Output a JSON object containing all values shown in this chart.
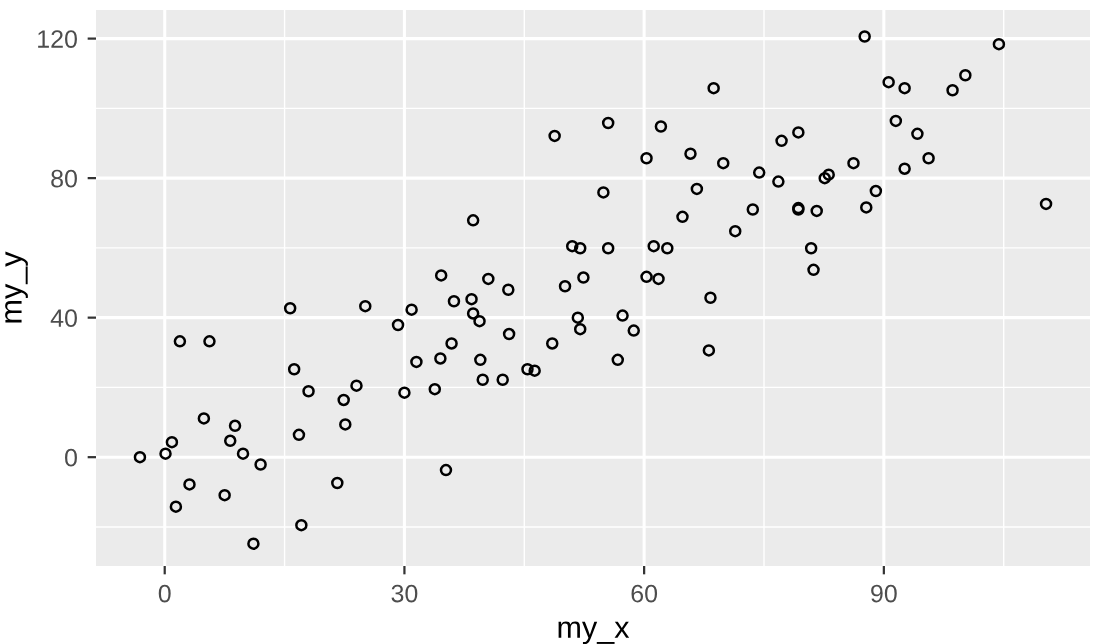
{
  "chart_data": {
    "type": "scatter",
    "xlabel": "my_x",
    "ylabel": "my_y",
    "marker": "circle",
    "grid": true,
    "legend": false,
    "xlim": [
      -8.6,
      115.8
    ],
    "ylim": [
      -31.2,
      128.2
    ],
    "xticks": [
      0,
      30,
      60,
      90
    ],
    "yticks": [
      0,
      40,
      80,
      120
    ],
    "series": [
      {
        "color": "#000000",
        "x": [
          -3.1,
          0.1,
          0.9,
          1.9,
          1.4,
          3.1,
          4.9,
          5.6,
          7.5,
          8.2,
          8.8,
          9.8,
          12.0,
          11.1,
          15.7,
          16.2,
          16.8,
          17.1,
          18.0,
          21.6,
          22.4,
          22.6,
          24.0,
          25.1,
          29.2,
          30.0,
          30.9,
          31.5,
          33.8,
          34.5,
          34.6,
          35.2,
          35.9,
          36.2,
          38.6,
          38.4,
          38.6,
          39.4,
          39.5,
          39.8,
          40.5,
          42.3,
          43.0,
          43.1,
          45.4,
          46.3,
          48.5,
          48.8,
          50.1,
          51.0,
          52.0,
          51.7,
          52.0,
          52.4,
          54.9,
          55.5,
          55.5,
          56.7,
          57.3,
          58.7,
          60.3,
          60.3,
          61.2,
          61.8,
          62.1,
          62.9,
          64.8,
          65.8,
          66.6,
          68.1,
          68.3,
          68.7,
          69.9,
          71.4,
          73.6,
          74.4,
          76.8,
          77.2,
          79.3,
          79.3,
          79.3,
          80.9,
          81.2,
          81.6,
          82.6,
          83.1,
          86.2,
          87.6,
          87.8,
          89.0,
          90.6,
          91.5,
          92.6,
          92.6,
          94.2,
          95.6,
          98.6,
          100.2,
          104.4,
          110.3
        ],
        "values": [
          0.0,
          1.0,
          4.3,
          33.2,
          -14.2,
          -7.8,
          11.1,
          33.2,
          -10.9,
          4.7,
          9.0,
          1.0,
          -2.1,
          -24.8,
          42.7,
          25.2,
          6.4,
          -19.5,
          18.9,
          -7.4,
          16.4,
          9.4,
          20.5,
          43.3,
          37.9,
          18.5,
          42.3,
          27.3,
          19.5,
          28.3,
          52.1,
          -3.7,
          32.6,
          44.7,
          67.9,
          45.3,
          41.2,
          39.0,
          27.9,
          22.2,
          51.1,
          22.2,
          48.0,
          35.3,
          25.2,
          24.8,
          32.6,
          92.1,
          49.0,
          60.5,
          59.9,
          40.0,
          36.7,
          51.5,
          75.9,
          95.8,
          59.9,
          27.9,
          40.6,
          36.3,
          85.7,
          51.7,
          60.5,
          51.1,
          94.8,
          59.9,
          68.9,
          87.0,
          76.9,
          30.6,
          45.7,
          105.8,
          84.3,
          64.8,
          71.0,
          81.6,
          79.0,
          90.7,
          93.1,
          71.4,
          71.0,
          59.9,
          53.7,
          70.6,
          80.0,
          81.0,
          84.3,
          120.6,
          71.6,
          76.3,
          107.5,
          96.4,
          105.8,
          82.7,
          92.7,
          85.7,
          105.2,
          109.5,
          118.4,
          72.6
        ]
      }
    ]
  }
}
